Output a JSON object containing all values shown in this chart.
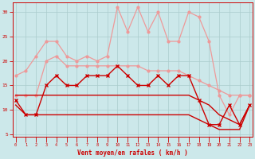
{
  "x": [
    0,
    1,
    2,
    3,
    4,
    5,
    6,
    7,
    8,
    9,
    10,
    11,
    12,
    13,
    14,
    15,
    16,
    17,
    18,
    19,
    20,
    21,
    22,
    23
  ],
  "line_pink_upper": [
    17,
    18,
    21,
    24,
    24,
    21,
    20,
    21,
    20,
    21,
    31,
    26,
    31,
    26,
    30,
    24,
    24,
    30,
    29,
    24,
    13,
    9,
    13,
    13
  ],
  "line_pink_lower": [
    13,
    13,
    13,
    20,
    21,
    19,
    19,
    19,
    19,
    19,
    19,
    19,
    19,
    18,
    18,
    18,
    18,
    17,
    16,
    15,
    14,
    13,
    13,
    13
  ],
  "line_mid_dark": [
    12,
    9,
    9,
    15,
    17,
    15,
    15,
    17,
    17,
    17,
    19,
    17,
    15,
    15,
    17,
    15,
    17,
    17,
    12,
    7,
    7,
    11,
    7,
    11
  ],
  "line_flat_upper": [
    13,
    13,
    13,
    13,
    13,
    13,
    13,
    13,
    13,
    13,
    13,
    13,
    13,
    13,
    13,
    13,
    13,
    13,
    12,
    11,
    9,
    8,
    7,
    11
  ],
  "line_flat_lower": [
    11,
    9,
    9,
    9,
    9,
    9,
    9,
    9,
    9,
    9,
    9,
    9,
    9,
    9,
    9,
    9,
    9,
    9,
    8,
    7,
    6,
    6,
    6,
    11
  ],
  "bg_color": "#cce8ea",
  "grid_color": "#aacccc",
  "dark_red": "#cc0000",
  "light_pink": "#ee9999",
  "xlabel": "Vent moyen/en rafales ( km/h )",
  "yticks": [
    5,
    10,
    15,
    20,
    25,
    30
  ],
  "xticks": [
    0,
    1,
    2,
    3,
    4,
    5,
    6,
    7,
    8,
    9,
    10,
    11,
    12,
    13,
    14,
    15,
    16,
    17,
    18,
    19,
    20,
    21,
    22,
    23
  ],
  "ylim": [
    4.5,
    32
  ],
  "xlim": [
    -0.3,
    23.3
  ]
}
